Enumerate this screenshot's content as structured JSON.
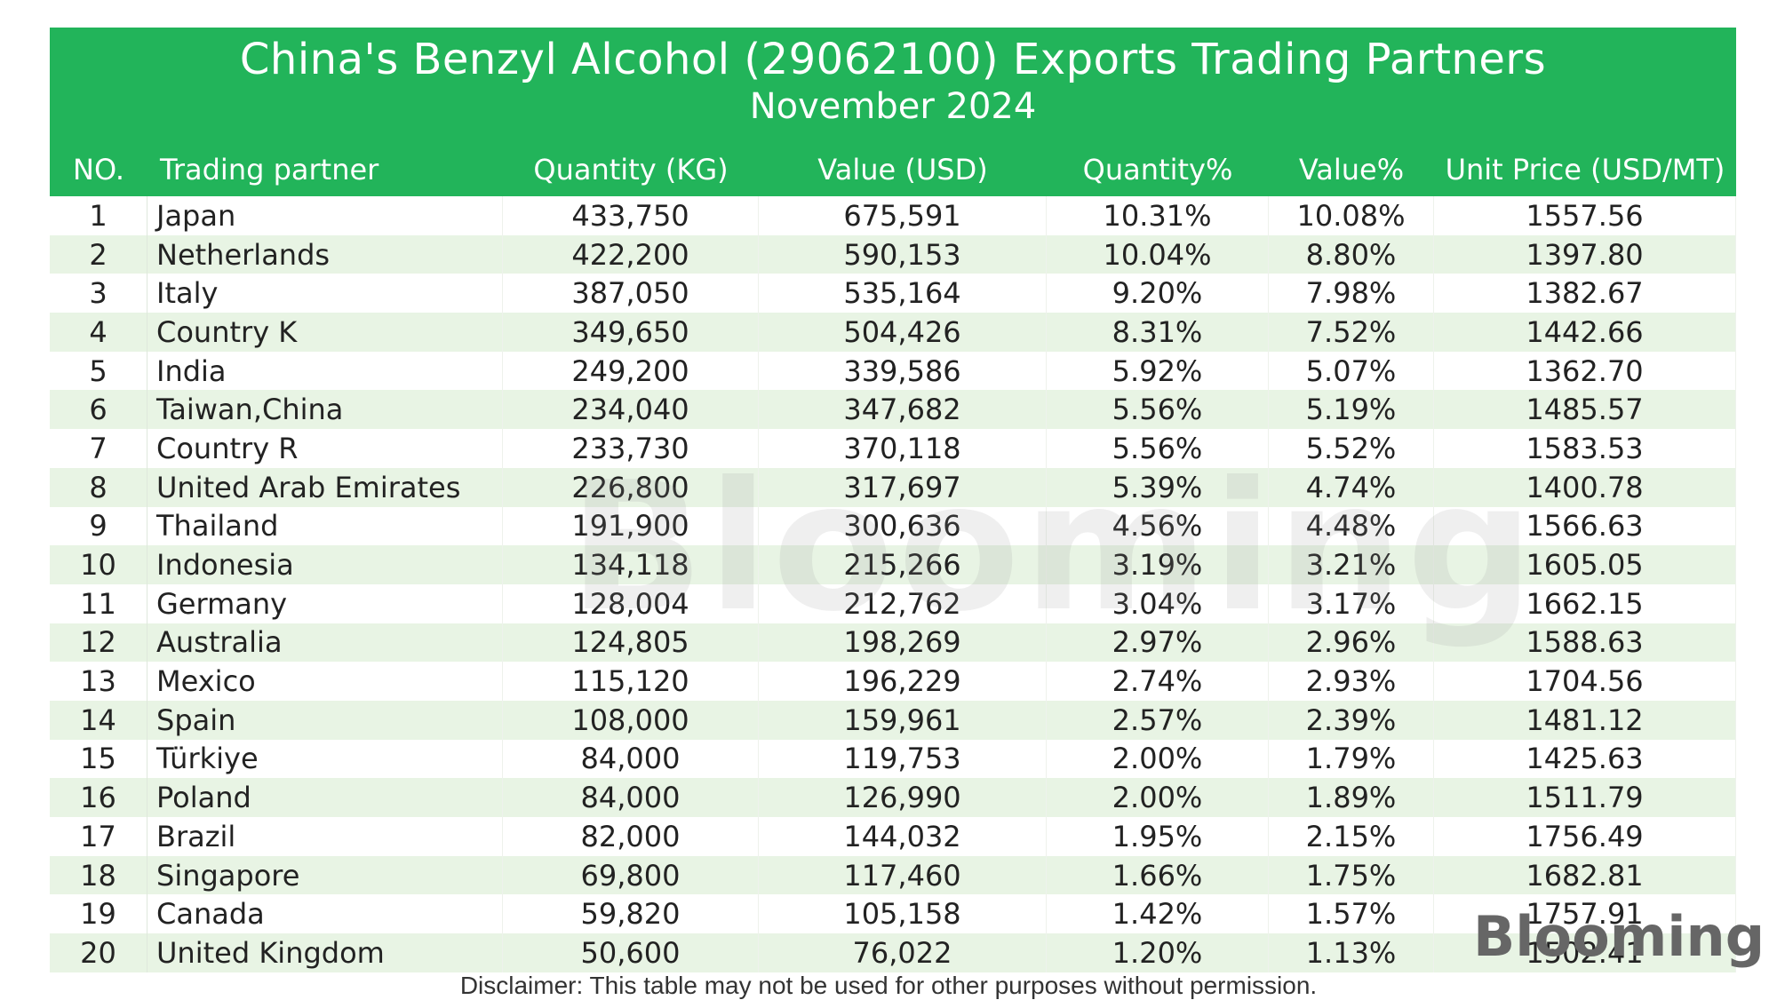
{
  "header": {
    "title": "China's Benzyl Alcohol (29062100) Exports Trading Partners",
    "subtitle": "November 2024"
  },
  "columns": [
    "NO.",
    "Trading partner",
    "Quantity (KG)",
    "Value (USD)",
    "Quantity%",
    "Value%",
    "Unit Price (USD/MT)"
  ],
  "colors": {
    "header_bg": "#22b45a",
    "header_text": "#ffffff",
    "stripe": "#e8f4e4"
  },
  "chart_data": {
    "type": "table",
    "title": "China's Benzyl Alcohol (29062100) Exports Trading Partners",
    "subtitle": "November 2024",
    "columns": [
      "NO.",
      "Trading partner",
      "Quantity (KG)",
      "Value (USD)",
      "Quantity%",
      "Value%",
      "Unit Price (USD/MT)"
    ],
    "rows": [
      [
        "1",
        "Japan",
        "433,750",
        "675,591",
        "10.31%",
        "10.08%",
        "1557.56"
      ],
      [
        "2",
        "Netherlands",
        "422,200",
        "590,153",
        "10.04%",
        "8.80%",
        "1397.80"
      ],
      [
        "3",
        "Italy",
        "387,050",
        "535,164",
        "9.20%",
        "7.98%",
        "1382.67"
      ],
      [
        "4",
        "Country K",
        "349,650",
        "504,426",
        "8.31%",
        "7.52%",
        "1442.66"
      ],
      [
        "5",
        "India",
        "249,200",
        "339,586",
        "5.92%",
        "5.07%",
        "1362.70"
      ],
      [
        "6",
        "Taiwan,China",
        "234,040",
        "347,682",
        "5.56%",
        "5.19%",
        "1485.57"
      ],
      [
        "7",
        "Country R",
        "233,730",
        "370,118",
        "5.56%",
        "5.52%",
        "1583.53"
      ],
      [
        "8",
        "United Arab Emirates",
        "226,800",
        "317,697",
        "5.39%",
        "4.74%",
        "1400.78"
      ],
      [
        "9",
        "Thailand",
        "191,900",
        "300,636",
        "4.56%",
        "4.48%",
        "1566.63"
      ],
      [
        "10",
        "Indonesia",
        "134,118",
        "215,266",
        "3.19%",
        "3.21%",
        "1605.05"
      ],
      [
        "11",
        "Germany",
        "128,004",
        "212,762",
        "3.04%",
        "3.17%",
        "1662.15"
      ],
      [
        "12",
        "Australia",
        "124,805",
        "198,269",
        "2.97%",
        "2.96%",
        "1588.63"
      ],
      [
        "13",
        "Mexico",
        "115,120",
        "196,229",
        "2.74%",
        "2.93%",
        "1704.56"
      ],
      [
        "14",
        "Spain",
        "108,000",
        "159,961",
        "2.57%",
        "2.39%",
        "1481.12"
      ],
      [
        "15",
        "Türkiye",
        "84,000",
        "119,753",
        "2.00%",
        "1.79%",
        "1425.63"
      ],
      [
        "16",
        "Poland",
        "84,000",
        "126,990",
        "2.00%",
        "1.89%",
        "1511.79"
      ],
      [
        "17",
        "Brazil",
        "82,000",
        "144,032",
        "1.95%",
        "2.15%",
        "1756.49"
      ],
      [
        "18",
        "Singapore",
        "69,800",
        "117,460",
        "1.66%",
        "1.75%",
        "1682.81"
      ],
      [
        "19",
        "Canada",
        "59,820",
        "105,158",
        "1.42%",
        "1.57%",
        "1757.91"
      ],
      [
        "20",
        "United Kingdom",
        "50,600",
        "76,022",
        "1.20%",
        "1.13%",
        "1502.41"
      ]
    ]
  },
  "watermark": "Blooming",
  "logo": "Blooming",
  "disclaimer": "Disclaimer: This table may not be used for other purposes without permission."
}
